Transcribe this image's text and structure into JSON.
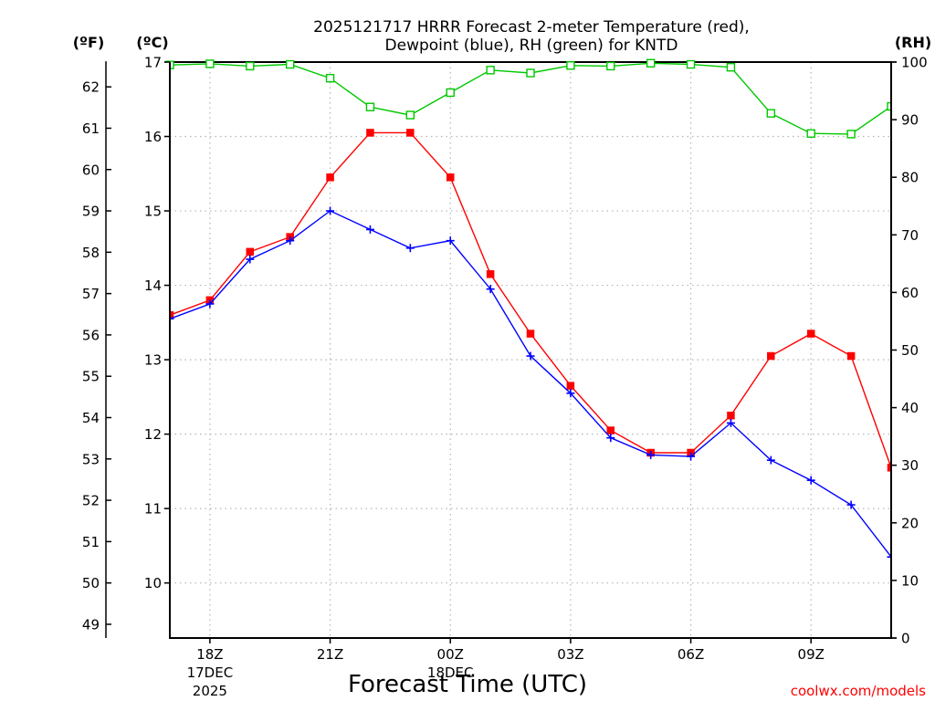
{
  "chart_data": {
    "type": "line",
    "title_line1": "2025121717 HRRR Forecast 2-meter Temperature (red),",
    "title_line2": "Dewpoint (blue), RH (green) for KNTD",
    "xlabel": "Forecast Time (UTC)",
    "credit": "coolwx.com/models",
    "units": {
      "fahrenheit": "(ºF)",
      "celsius": "(ºC)",
      "rh": "(RH)"
    },
    "x_ticks": [
      {
        "hour": 1,
        "lines": [
          "18Z",
          "17DEC",
          "2025"
        ]
      },
      {
        "hour": 4,
        "lines": [
          "21Z"
        ]
      },
      {
        "hour": 7,
        "lines": [
          "00Z",
          "18DEC"
        ]
      },
      {
        "hour": 10,
        "lines": [
          "03Z"
        ]
      },
      {
        "hour": 13,
        "lines": [
          "06Z"
        ]
      },
      {
        "hour": 16,
        "lines": [
          "09Z"
        ]
      }
    ],
    "x_range": [
      0,
      18
    ],
    "celsius_range": [
      9.26,
      17.0
    ],
    "celsius_ticks": [
      10,
      11,
      12,
      13,
      14,
      15,
      16,
      17
    ],
    "fahrenheit_ticks": [
      49,
      50,
      51,
      52,
      53,
      54,
      55,
      56,
      57,
      58,
      59,
      60,
      61,
      62
    ],
    "rh_range": [
      0,
      100
    ],
    "rh_ticks": [
      0,
      10,
      20,
      30,
      40,
      50,
      60,
      70,
      80,
      90,
      100
    ],
    "series": [
      {
        "name": "Temperature",
        "unit": "C",
        "color": "#ff0000",
        "marker": "filled-square",
        "values": [
          13.6,
          13.8,
          14.45,
          14.65,
          15.45,
          16.05,
          16.05,
          15.45,
          14.15,
          13.35,
          12.65,
          12.05,
          11.75,
          11.75,
          12.25,
          13.05,
          13.35,
          13.05,
          11.55
        ]
      },
      {
        "name": "Dewpoint",
        "unit": "C",
        "color": "#0000ff",
        "marker": "plus",
        "values": [
          13.55,
          13.75,
          14.35,
          14.6,
          15.0,
          14.75,
          14.5,
          14.6,
          13.95,
          13.05,
          12.55,
          11.95,
          11.72,
          11.7,
          12.15,
          11.65,
          11.38,
          11.05,
          10.35
        ]
      },
      {
        "name": "RH",
        "unit": "%",
        "color": "#00c800",
        "marker": "open-square",
        "values": [
          99.5,
          99.7,
          99.3,
          99.6,
          97.2,
          92.2,
          90.8,
          94.7,
          98.6,
          98.1,
          99.4,
          99.3,
          99.8,
          99.6,
          99.1,
          91.1,
          87.6,
          87.5,
          92.3
        ]
      }
    ]
  }
}
